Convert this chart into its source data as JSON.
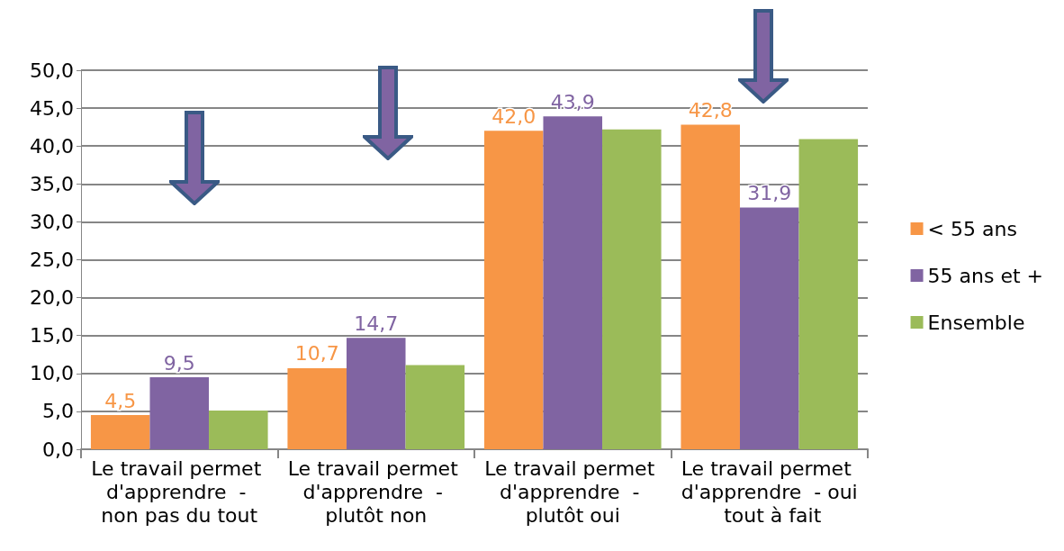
{
  "chart_data": {
    "type": "bar",
    "categories": [
      "Le travail permet d'apprendre  - non pas du tout",
      "Le travail permet d'apprendre  - plutôt non",
      "Le travail permet d'apprendre  - plutôt oui",
      "Le travail permet d'apprendre  - oui tout à fait"
    ],
    "series": [
      {
        "name": "< 55 ans",
        "color": "#f79646",
        "values": [
          4.5,
          10.7,
          42.0,
          42.8
        ],
        "value_labels": [
          "4,5",
          "10,7",
          "42,0",
          "42,8"
        ]
      },
      {
        "name": "55 ans et +",
        "color": "#8064a2",
        "values": [
          9.5,
          14.7,
          43.9,
          31.9
        ],
        "value_labels": [
          "9,5",
          "14,7",
          "43,9",
          "31,9"
        ]
      },
      {
        "name": "Ensemble",
        "color": "#9bbb59",
        "values": [
          5.1,
          11.1,
          42.2,
          40.9
        ]
      }
    ],
    "ylim": [
      0,
      50
    ],
    "yticks": [
      {
        "value": 0,
        "label": "0,0"
      },
      {
        "value": 5,
        "label": "5,0"
      },
      {
        "value": 10,
        "label": "10,0"
      },
      {
        "value": 15,
        "label": "15,0"
      },
      {
        "value": 20,
        "label": "20,0"
      },
      {
        "value": 25,
        "label": "25,0"
      },
      {
        "value": 30,
        "label": "30,0"
      },
      {
        "value": 35,
        "label": "35,0"
      },
      {
        "value": 40,
        "label": "40,0"
      },
      {
        "value": 45,
        "label": "45,0"
      },
      {
        "value": 50,
        "label": "50,0"
      }
    ],
    "grid": "y",
    "legend": "right"
  }
}
